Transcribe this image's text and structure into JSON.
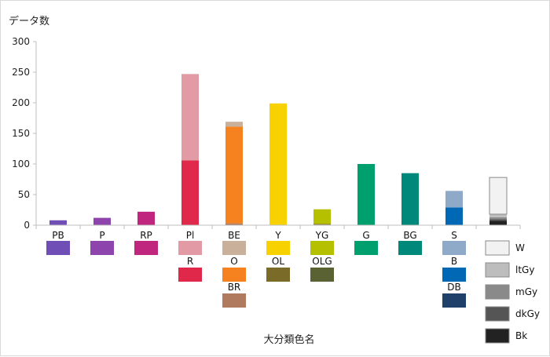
{
  "chart_data": {
    "type": "bar",
    "stacked": true,
    "ylabel": "データ数",
    "xlabel": "大分類色名",
    "ylim": [
      0,
      300
    ],
    "yticks": [
      0,
      50,
      100,
      150,
      200,
      250,
      300
    ],
    "grid": false,
    "categories": [
      "PB",
      "P",
      "RP",
      "Pl",
      "BE",
      "Y",
      "YG",
      "G",
      "BG",
      "S",
      ""
    ],
    "stacks": [
      [
        {
          "name": "PB",
          "value": 8,
          "color": "#6f4fb5"
        }
      ],
      [
        {
          "name": "P",
          "value": 12,
          "color": "#8e44ad"
        }
      ],
      [
        {
          "name": "RP",
          "value": 22,
          "color": "#c0267e"
        }
      ],
      [
        {
          "name": "R",
          "value": 106,
          "color": "#e0294a"
        },
        {
          "name": "Pl",
          "value": 141,
          "color": "#e29aa4"
        }
      ],
      [
        {
          "name": "BR",
          "value": 3,
          "color": "#b07a5e"
        },
        {
          "name": "O",
          "value": 158,
          "color": "#f5821f"
        },
        {
          "name": "BE",
          "value": 8,
          "color": "#c8b09a"
        }
      ],
      [
        {
          "name": "Y",
          "value": 199,
          "color": "#f7d200"
        }
      ],
      [
        {
          "name": "OLG",
          "value": 1,
          "color": "#5a6132"
        },
        {
          "name": "OL",
          "value": 1,
          "color": "#7a6c28"
        },
        {
          "name": "YG",
          "value": 24,
          "color": "#b4c000"
        }
      ],
      [
        {
          "name": "G",
          "value": 100,
          "color": "#00a06e"
        }
      ],
      [
        {
          "name": "BG",
          "value": 85,
          "color": "#00897b"
        }
      ],
      [
        {
          "name": "DB",
          "value": 0,
          "color": "#1f4068"
        },
        {
          "name": "B",
          "value": 29,
          "color": "#0068b4"
        },
        {
          "name": "S",
          "value": 27,
          "color": "#8eaac8"
        }
      ],
      [
        {
          "name": "Bk",
          "value": 7,
          "color": "#222222"
        },
        {
          "name": "dkGy",
          "value": 3,
          "color": "#555555"
        },
        {
          "name": "mGy",
          "value": 3,
          "color": "#8a8a8a"
        },
        {
          "name": "ltGy",
          "value": 5,
          "color": "#bdbdbd"
        },
        {
          "name": "W",
          "value": 60,
          "color": "#f2f2f2",
          "stroke": "#8a8a8a"
        }
      ]
    ],
    "swatch_rows": [
      [
        {
          "label": "",
          "color": "#6f4fb5"
        },
        {
          "label": "",
          "color": "#8e44ad"
        },
        {
          "label": "",
          "color": "#c0267e"
        },
        {
          "label": "",
          "color": "#e29aa4"
        },
        {
          "label": "",
          "color": "#c8b09a"
        },
        {
          "label": "",
          "color": "#f7d200"
        },
        {
          "label": "",
          "color": "#b4c000"
        },
        {
          "label": "",
          "color": "#00a06e"
        },
        {
          "label": "",
          "color": "#00897b"
        },
        {
          "label": "",
          "color": "#8eaac8"
        }
      ],
      [
        null,
        null,
        null,
        {
          "label": "R",
          "color": "#e0294a"
        },
        {
          "label": "O",
          "color": "#f5821f"
        },
        {
          "label": "OL",
          "color": "#7a6c28"
        },
        {
          "label": "OLG",
          "color": "#5a6132"
        },
        null,
        null,
        {
          "label": "B",
          "color": "#0068b4"
        }
      ],
      [
        null,
        null,
        null,
        null,
        {
          "label": "BR",
          "color": "#b07a5e"
        },
        null,
        null,
        null,
        null,
        {
          "label": "DB",
          "color": "#1f4068"
        }
      ]
    ],
    "gray_legend": [
      {
        "label": "W",
        "color": "#f2f2f2"
      },
      {
        "label": "ltGy",
        "color": "#bdbdbd"
      },
      {
        "label": "mGy",
        "color": "#8a8a8a"
      },
      {
        "label": "dkGy",
        "color": "#555555"
      },
      {
        "label": "Bk",
        "color": "#222222"
      }
    ]
  }
}
